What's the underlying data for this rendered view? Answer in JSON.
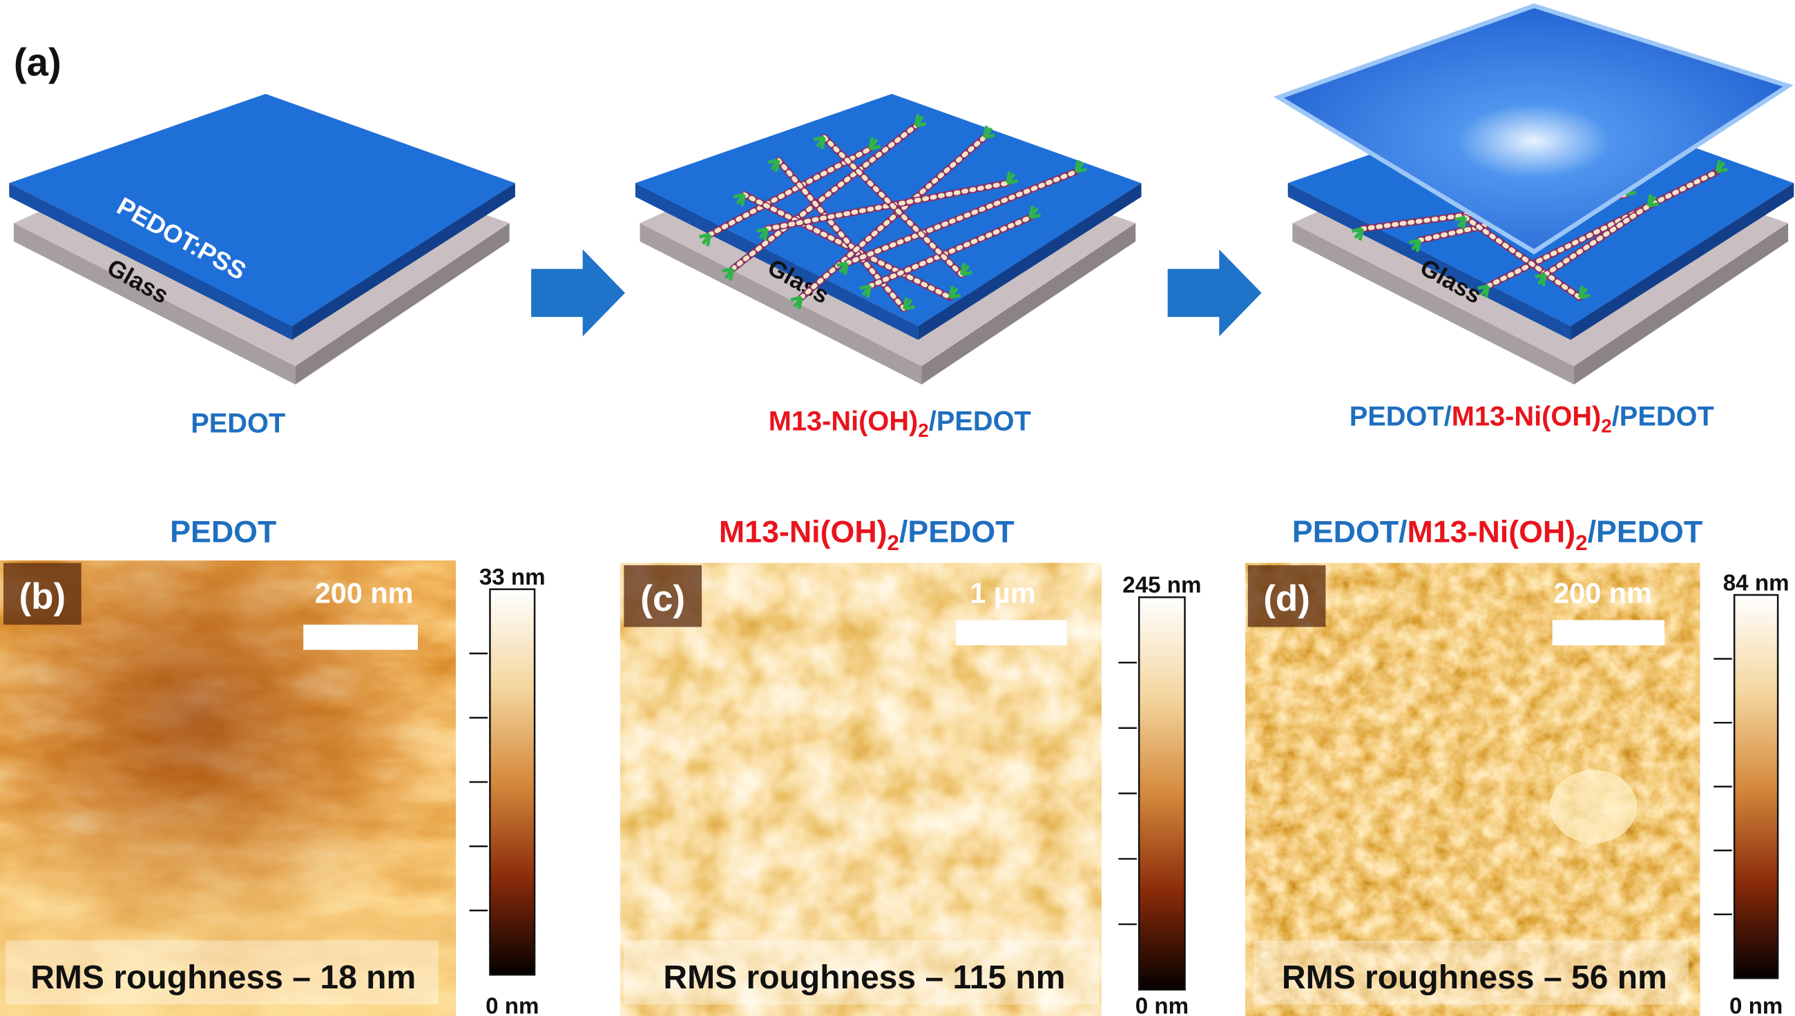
{
  "panel_a": {
    "label": "(a)",
    "steps": [
      {
        "layers": [
          "PEDOT:PSS",
          "Glass"
        ],
        "caption": [
          {
            "text": "PEDOT",
            "color": "#1f6fc0"
          }
        ]
      },
      {
        "layers": [
          "Glass"
        ],
        "caption": [
          {
            "text": "M13-Ni(OH)",
            "color": "#e8141c"
          },
          {
            "text": "2",
            "color": "#e8141c",
            "sub": true
          },
          {
            "text": "/PEDOT",
            "color": "#1f6fc0"
          }
        ]
      },
      {
        "layers": [
          "Glass"
        ],
        "caption": [
          {
            "text": "PEDOT/",
            "color": "#1f6fc0"
          },
          {
            "text": "M13-Ni(OH)",
            "color": "#e8141c"
          },
          {
            "text": "2",
            "color": "#e8141c",
            "sub": true
          },
          {
            "text": "/PEDOT",
            "color": "#1f6fc0"
          }
        ]
      }
    ]
  },
  "afm_panels": [
    {
      "label": "(b)",
      "title": [
        {
          "text": "PEDOT",
          "color": "#1f6fc0"
        }
      ],
      "scale_bar": "200 nm",
      "colorbar_max": "33 nm",
      "colorbar_min": "0 nm",
      "rms": "RMS roughness  – 18 nm"
    },
    {
      "label": "(c)",
      "title": [
        {
          "text": "M13-Ni(OH)",
          "color": "#e8141c"
        },
        {
          "text": "2",
          "color": "#e8141c",
          "sub": true
        },
        {
          "text": "/PEDOT",
          "color": "#1f6fc0"
        }
      ],
      "scale_bar": "1 µm",
      "colorbar_max": "245 nm",
      "colorbar_min": "0 nm",
      "rms": "RMS roughness  – 115 nm"
    },
    {
      "label": "(d)",
      "title": [
        {
          "text": "PEDOT/",
          "color": "#1f6fc0"
        },
        {
          "text": "M13-Ni(OH)",
          "color": "#e8141c"
        },
        {
          "text": "2",
          "color": "#e8141c",
          "sub": true
        },
        {
          "text": "/PEDOT",
          "color": "#1f6fc0"
        }
      ],
      "scale_bar": "200 nm",
      "colorbar_max": "84 nm",
      "colorbar_min": "0 nm",
      "rms": "RMS roughness  – 56 nm"
    }
  ]
}
